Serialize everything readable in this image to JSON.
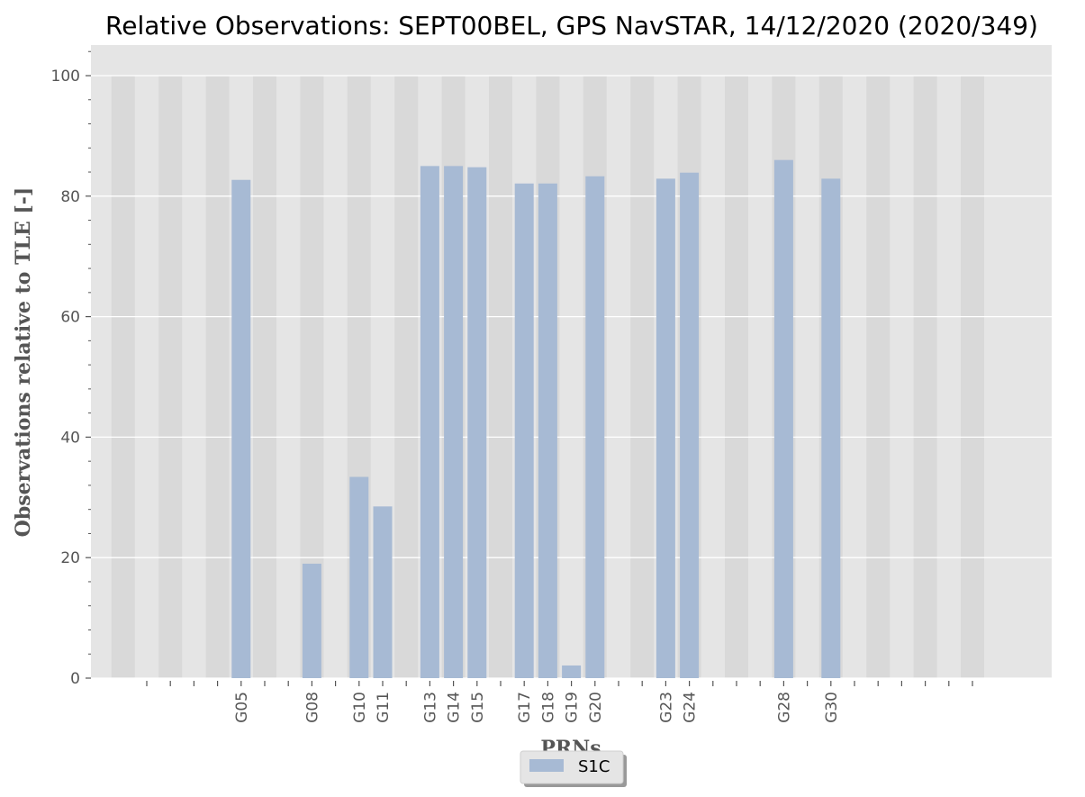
{
  "chart_data": {
    "type": "bar",
    "title": "Relative Observations: SEPT00BEL, GPS NavSTAR, 14/12/2020 (2020/349)",
    "xlabel": "PRNs",
    "ylabel": "Observations relative to TLE [-]",
    "ylim": [
      0,
      100
    ],
    "yticks": [
      0,
      20,
      40,
      60,
      80,
      100
    ],
    "grid": true,
    "legend_position": "bottom-center",
    "slot_count": 37,
    "categories": [
      "G05",
      "G08",
      "G10",
      "G11",
      "G13",
      "G14",
      "G15",
      "G17",
      "G18",
      "G19",
      "G20",
      "G23",
      "G24",
      "G28",
      "G30"
    ],
    "category_slots": [
      5,
      8,
      10,
      11,
      13,
      14,
      15,
      17,
      18,
      19,
      20,
      23,
      24,
      28,
      30
    ],
    "series": [
      {
        "name": "S1C",
        "values": [
          82.7,
          19.0,
          33.4,
          28.5,
          85.0,
          85.0,
          84.8,
          82.1,
          82.1,
          2.1,
          83.3,
          82.9,
          83.9,
          86.0,
          82.9
        ]
      }
    ],
    "colors": {
      "bar": "#a7bad4",
      "plot_background": "#e5e5e5",
      "band": "#d9d9d9",
      "grid": "#ffffff"
    }
  }
}
